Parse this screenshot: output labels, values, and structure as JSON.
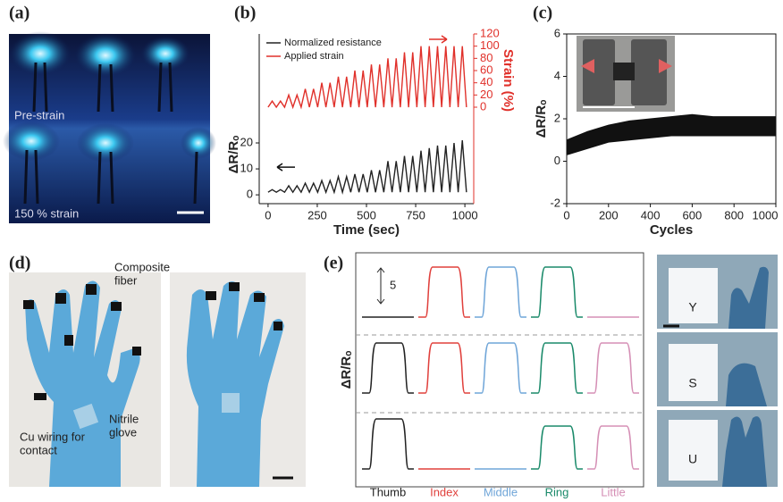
{
  "figure": {
    "panel_labels": [
      "(a)",
      "(b)",
      "(c)",
      "(d)",
      "(e)"
    ],
    "photo_a": {
      "top_label": "Pre-strain",
      "bottom_label": "150 % strain"
    },
    "photo_d": {
      "labels": [
        [
          "Composite",
          "fiber"
        ],
        [
          "Cu wiring for",
          "contact"
        ],
        [
          "Nitrile",
          "glove"
        ]
      ]
    }
  },
  "chart_data": [
    {
      "type": "line",
      "xlabel": "Time (sec)",
      "ylabel": "ΔR/Rₒ",
      "y2label": "Strain (%)",
      "x": [
        0,
        21,
        42,
        63,
        84,
        105,
        126,
        147,
        168,
        189,
        210,
        231,
        252,
        273,
        294,
        315,
        336,
        357,
        378,
        399,
        420,
        441,
        462,
        483,
        504,
        525,
        546,
        567,
        588,
        609,
        630,
        651,
        672,
        693,
        714,
        735,
        756,
        777,
        798,
        819,
        840,
        861,
        882,
        903,
        924,
        945,
        966,
        987,
        1008
      ],
      "xlim": [
        -45,
        1045
      ],
      "xticks": [
        0,
        250,
        500,
        750,
        1000
      ],
      "ylim": [
        -3.4,
        62
      ],
      "yticks": [
        0,
        10,
        20
      ],
      "y2lim": [
        -158,
        120
      ],
      "y2ticks": [
        0,
        20,
        40,
        60,
        80,
        100,
        120
      ],
      "legend": "upper left",
      "series": [
        {
          "name": "Normalized resistance",
          "color": "#222222",
          "values": [
            1,
            2,
            1,
            2,
            1,
            3.5,
            1,
            3.5,
            1,
            4.5,
            1,
            4.5,
            1,
            5.5,
            1,
            5.5,
            1,
            7,
            1,
            7,
            1,
            8,
            1,
            8,
            1,
            9.5,
            1,
            9.5,
            1,
            13,
            1,
            13,
            1,
            15,
            1,
            15,
            1,
            17,
            1,
            18,
            1,
            19,
            1,
            19,
            1,
            20,
            1,
            21,
            1
          ]
        },
        {
          "name": "Applied strain",
          "color": "#e0302a",
          "axis": "y2",
          "values": [
            0,
            10,
            0,
            10,
            0,
            20,
            0,
            20,
            0,
            30,
            0,
            30,
            0,
            40,
            0,
            40,
            0,
            50,
            0,
            50,
            0,
            60,
            0,
            60,
            0,
            70,
            0,
            70,
            0,
            80,
            0,
            80,
            0,
            90,
            0,
            90,
            0,
            100,
            0,
            100,
            0,
            100,
            0,
            100,
            0,
            100,
            0,
            100,
            0
          ]
        }
      ]
    },
    {
      "type": "range",
      "xlabel": "Cycles",
      "ylabel": "ΔR/Rₒ",
      "x": [
        0,
        100,
        200,
        300,
        400,
        500,
        600,
        700,
        800,
        900,
        1000
      ],
      "xlim": [
        0,
        1000
      ],
      "xticks": [
        0,
        200,
        400,
        600,
        800,
        1000
      ],
      "ylim": [
        -2,
        6
      ],
      "yticks": [
        -2,
        0,
        2,
        4,
        6
      ],
      "series": [
        {
          "color": "#111111",
          "values": [
            1.0,
            1.4,
            1.7,
            1.9,
            2.0,
            2.1,
            2.2,
            2.1,
            2.1,
            2.1,
            2.1
          ]
        },
        {
          "color": "#111111",
          "values": [
            0.3,
            0.6,
            0.9,
            1.0,
            1.1,
            1.2,
            1.2,
            1.2,
            1.2,
            1.2,
            1.2
          ]
        }
      ]
    }
  ],
  "signal_panel": {
    "ylabel": "ΔR/Rₒ",
    "scale_label": "5",
    "scale_value": 5,
    "fingers": [
      {
        "name": "Thumb",
        "color": "#222222"
      },
      {
        "name": "Index",
        "color": "#e0403c"
      },
      {
        "name": "Middle",
        "color": "#6fa5d8"
      },
      {
        "name": "Ring",
        "color": "#1a8a6a"
      },
      {
        "name": "Little",
        "color": "#d58fb5"
      }
    ],
    "rows": [
      {
        "letter": "Y",
        "values": [
          0,
          7,
          7,
          7,
          0
        ]
      },
      {
        "letter": "S",
        "values": [
          7,
          7,
          7,
          7,
          7
        ]
      },
      {
        "letter": "U",
        "values": [
          7,
          0,
          0,
          6,
          6
        ]
      }
    ]
  }
}
